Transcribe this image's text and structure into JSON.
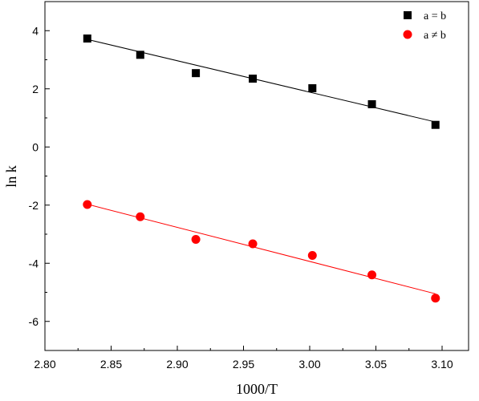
{
  "chart_data": {
    "type": "scatter",
    "xlabel": "1000/T",
    "ylabel": "ln k",
    "xlim": [
      2.8,
      3.12
    ],
    "ylim": [
      -7,
      5
    ],
    "xticks": [
      "2.80",
      "2.85",
      "2.90",
      "2.95",
      "3.00",
      "3.05",
      "3.10"
    ],
    "yticks": [
      "-6",
      "-4",
      "-2",
      "0",
      "2",
      "4"
    ],
    "grid": false,
    "legend_position": "top-right",
    "series": [
      {
        "name": "a = b",
        "marker": "square",
        "color": "#000000",
        "x": [
          2.832,
          2.872,
          2.914,
          2.957,
          3.002,
          3.047,
          3.095
        ],
        "y": [
          3.73,
          3.17,
          2.54,
          2.35,
          2.02,
          1.47,
          0.76
        ],
        "fit": [
          [
            2.832,
            3.7
          ],
          [
            3.095,
            0.86
          ]
        ]
      },
      {
        "name": "a ≠ b",
        "marker": "circle",
        "color": "#ff0000",
        "x": [
          2.832,
          2.872,
          2.914,
          2.957,
          3.002,
          3.047,
          3.095
        ],
        "y": [
          -1.98,
          -2.4,
          -3.18,
          -3.33,
          -3.73,
          -4.4,
          -5.2
        ],
        "fit": [
          [
            2.832,
            -1.97
          ],
          [
            3.095,
            -5.05
          ]
        ]
      }
    ]
  }
}
